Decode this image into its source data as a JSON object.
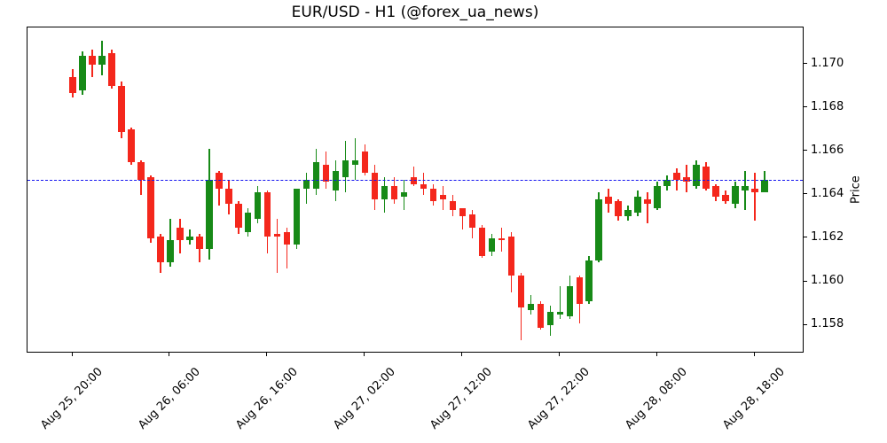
{
  "title": "EUR/USD - H1 (@forex_ua_news)",
  "y_axis": {
    "label": "Price",
    "tick_values": [
      1.158,
      1.16,
      1.162,
      1.164,
      1.166,
      1.168,
      1.17
    ],
    "tick_format_decimals": 3
  },
  "x_axis": {
    "tick_labels": [
      "Aug 25, 20:00",
      "Aug 26, 06:00",
      "Aug 26, 16:00",
      "Aug 27, 02:00",
      "Aug 27, 12:00",
      "Aug 27, 22:00",
      "Aug 28, 08:00",
      "Aug 28, 18:00"
    ],
    "tick_indices": [
      0,
      10,
      20,
      30,
      40,
      50,
      60,
      70
    ]
  },
  "reference_line": {
    "value": 1.1647,
    "color": "#1414f0",
    "style": "dashed"
  },
  "colors": {
    "up": "#178a17",
    "down": "#f4271c",
    "spine": "#000000",
    "background": "#ffffff"
  },
  "chart_data": {
    "type": "candlestick",
    "symbol": "EUR/USD",
    "timeframe": "H1",
    "source_handle": "@forex_ua_news",
    "ylim": [
      1.1567,
      1.1717
    ],
    "ylabel": "Price",
    "grid": false,
    "candles_format": [
      "time",
      "open",
      "high",
      "low",
      "close"
    ],
    "candles": [
      [
        "Aug 25 20:00",
        1.1694,
        1.1698,
        1.1685,
        1.1687
      ],
      [
        "Aug 25 21:00",
        1.1688,
        1.1706,
        1.1686,
        1.1704
      ],
      [
        "Aug 25 22:00",
        1.1704,
        1.1707,
        1.1694,
        1.17
      ],
      [
        "Aug 25 23:00",
        1.17,
        1.1711,
        1.1695,
        1.1704
      ],
      [
        "Aug 26 00:00",
        1.1705,
        1.1707,
        1.1689,
        1.169
      ],
      [
        "Aug 26 01:00",
        1.169,
        1.1692,
        1.1666,
        1.1669
      ],
      [
        "Aug 26 02:00",
        1.167,
        1.1671,
        1.1654,
        1.1655
      ],
      [
        "Aug 26 03:00",
        1.1655,
        1.1656,
        1.164,
        1.1647
      ],
      [
        "Aug 26 04:00",
        1.1648,
        1.1649,
        1.1618,
        1.162
      ],
      [
        "Aug 26 05:00",
        1.1621,
        1.1622,
        1.1604,
        1.1609
      ],
      [
        "Aug 26 06:00",
        1.1609,
        1.1629,
        1.1607,
        1.1619
      ],
      [
        "Aug 26 07:00",
        1.1625,
        1.1629,
        1.1613,
        1.1619
      ],
      [
        "Aug 26 08:00",
        1.1619,
        1.1624,
        1.1617,
        1.1621
      ],
      [
        "Aug 26 09:00",
        1.1621,
        1.1622,
        1.1609,
        1.1615
      ],
      [
        "Aug 26 10:00",
        1.1615,
        1.1661,
        1.161,
        1.1647
      ],
      [
        "Aug 26 11:00",
        1.165,
        1.1651,
        1.1635,
        1.1643
      ],
      [
        "Aug 26 12:00",
        1.1643,
        1.1647,
        1.1631,
        1.1636
      ],
      [
        "Aug 26 13:00",
        1.1636,
        1.1637,
        1.1622,
        1.1625
      ],
      [
        "Aug 26 14:00",
        1.1623,
        1.1634,
        1.1621,
        1.1632
      ],
      [
        "Aug 26 15:00",
        1.1629,
        1.1644,
        1.1627,
        1.1641
      ],
      [
        "Aug 26 16:00",
        1.1641,
        1.1642,
        1.1613,
        1.1621
      ],
      [
        "Aug 26 17:00",
        1.1622,
        1.1629,
        1.1604,
        1.1621
      ],
      [
        "Aug 26 18:00",
        1.1623,
        1.1625,
        1.1606,
        1.1617
      ],
      [
        "Aug 26 19:00",
        1.1617,
        1.1643,
        1.1615,
        1.1643
      ],
      [
        "Aug 26 20:00",
        1.1643,
        1.165,
        1.1636,
        1.1647
      ],
      [
        "Aug 26 21:00",
        1.1643,
        1.1661,
        1.164,
        1.1655
      ],
      [
        "Aug 26 22:00",
        1.1654,
        1.166,
        1.1643,
        1.1646
      ],
      [
        "Aug 26 23:00",
        1.1642,
        1.1656,
        1.1637,
        1.1651
      ],
      [
        "Aug 27 00:00",
        1.1648,
        1.1665,
        1.1641,
        1.1656
      ],
      [
        "Aug 27 01:00",
        1.1654,
        1.1666,
        1.1647,
        1.1656
      ],
      [
        "Aug 27 02:00",
        1.166,
        1.1663,
        1.1649,
        1.165
      ],
      [
        "Aug 27 03:00",
        1.165,
        1.1654,
        1.1633,
        1.1638
      ],
      [
        "Aug 27 04:00",
        1.1638,
        1.1648,
        1.1632,
        1.1644
      ],
      [
        "Aug 27 05:00",
        1.1644,
        1.1648,
        1.1636,
        1.1638
      ],
      [
        "Aug 27 06:00",
        1.1639,
        1.1647,
        1.1633,
        1.1641
      ],
      [
        "Aug 27 07:00",
        1.1648,
        1.1653,
        1.1644,
        1.1645
      ],
      [
        "Aug 27 08:00",
        1.1645,
        1.165,
        1.164,
        1.1643
      ],
      [
        "Aug 27 09:00",
        1.1643,
        1.1645,
        1.1635,
        1.1637
      ],
      [
        "Aug 27 10:00",
        1.164,
        1.1644,
        1.1633,
        1.1638
      ],
      [
        "Aug 27 11:00",
        1.1637,
        1.164,
        1.163,
        1.1633
      ],
      [
        "Aug 27 12:00",
        1.1634,
        1.1634,
        1.1624,
        1.163
      ],
      [
        "Aug 27 13:00",
        1.1631,
        1.1633,
        1.162,
        1.1625
      ],
      [
        "Aug 27 14:00",
        1.1625,
        1.1626,
        1.1611,
        1.1612
      ],
      [
        "Aug 27 15:00",
        1.1614,
        1.1622,
        1.1612,
        1.162
      ],
      [
        "Aug 27 16:00",
        1.162,
        1.1625,
        1.1614,
        1.1619
      ],
      [
        "Aug 27 17:00",
        1.1621,
        1.1623,
        1.1595,
        1.1603
      ],
      [
        "Aug 27 18:00",
        1.1603,
        1.1604,
        1.1573,
        1.1588
      ],
      [
        "Aug 27 19:00",
        1.1587,
        1.1594,
        1.1585,
        1.159
      ],
      [
        "Aug 27 20:00",
        1.159,
        1.1591,
        1.1578,
        1.1579
      ],
      [
        "Aug 27 21:00",
        1.158,
        1.1589,
        1.1575,
        1.1586
      ],
      [
        "Aug 27 22:00",
        1.1585,
        1.1598,
        1.1583,
        1.1586
      ],
      [
        "Aug 27 23:00",
        1.1584,
        1.1603,
        1.1583,
        1.1598
      ],
      [
        "Aug 28 00:00",
        1.1602,
        1.1603,
        1.1581,
        1.159
      ],
      [
        "Aug 28 01:00",
        1.1591,
        1.1612,
        1.159,
        1.161
      ],
      [
        "Aug 28 02:00",
        1.161,
        1.1641,
        1.1609,
        1.1638
      ],
      [
        "Aug 28 03:00",
        1.1639,
        1.1643,
        1.1632,
        1.1636
      ],
      [
        "Aug 28 04:00",
        1.1637,
        1.1638,
        1.1628,
        1.163
      ],
      [
        "Aug 28 05:00",
        1.163,
        1.1635,
        1.1628,
        1.1633
      ],
      [
        "Aug 28 06:00",
        1.1632,
        1.1642,
        1.163,
        1.1639
      ],
      [
        "Aug 28 07:00",
        1.1638,
        1.1641,
        1.1627,
        1.1636
      ],
      [
        "Aug 28 08:00",
        1.1634,
        1.1646,
        1.1633,
        1.1644
      ],
      [
        "Aug 28 09:00",
        1.1644,
        1.1649,
        1.1642,
        1.1647
      ],
      [
        "Aug 28 10:00",
        1.165,
        1.1652,
        1.1642,
        1.1647
      ],
      [
        "Aug 28 11:00",
        1.1648,
        1.1654,
        1.1641,
        1.1646
      ],
      [
        "Aug 28 12:00",
        1.1644,
        1.1656,
        1.1643,
        1.1654
      ],
      [
        "Aug 28 13:00",
        1.1653,
        1.1655,
        1.1642,
        1.1643
      ],
      [
        "Aug 28 14:00",
        1.1644,
        1.1645,
        1.1637,
        1.1639
      ],
      [
        "Aug 28 15:00",
        1.164,
        1.1642,
        1.1636,
        1.1637
      ],
      [
        "Aug 28 16:00",
        1.1636,
        1.1646,
        1.1634,
        1.1644
      ],
      [
        "Aug 28 17:00",
        1.1642,
        1.1651,
        1.1633,
        1.1644
      ],
      [
        "Aug 28 18:00",
        1.1643,
        1.165,
        1.1628,
        1.1641
      ],
      [
        "Aug 28 19:00",
        1.1641,
        1.1651,
        1.1641,
        1.1647
      ]
    ]
  }
}
